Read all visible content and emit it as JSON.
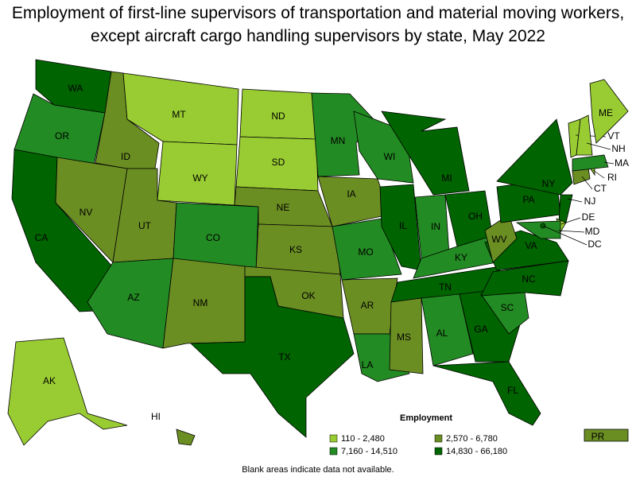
{
  "title": "Employment of first-line supervisors of transportation and material moving workers, except aircraft cargo handling supervisors by state, May 2022",
  "legend": {
    "title": "Employment",
    "items": [
      {
        "label": "110 - 2,480",
        "color": "#99cc33"
      },
      {
        "label": "2,570 - 6,780",
        "color": "#6b8e23"
      },
      {
        "label": "7,160 - 14,510",
        "color": "#238b23"
      },
      {
        "label": "14,830 - 66,180",
        "color": "#006400"
      }
    ]
  },
  "states": [
    {
      "label": "WA",
      "class": 3
    },
    {
      "label": "OR",
      "class": 2
    },
    {
      "label": "CA",
      "class": 3
    },
    {
      "label": "NV",
      "class": 1
    },
    {
      "label": "ID",
      "class": 1
    },
    {
      "label": "MT",
      "class": 0
    },
    {
      "label": "WY",
      "class": 0
    },
    {
      "label": "UT",
      "class": 1
    },
    {
      "label": "CO",
      "class": 2
    },
    {
      "label": "AZ",
      "class": 2
    },
    {
      "label": "NM",
      "class": 1
    },
    {
      "label": "ND",
      "class": 0
    },
    {
      "label": "SD",
      "class": 0
    },
    {
      "label": "NE",
      "class": 1
    },
    {
      "label": "KS",
      "class": 1
    },
    {
      "label": "OK",
      "class": 1
    },
    {
      "label": "TX",
      "class": 3
    },
    {
      "label": "MN",
      "class": 2
    },
    {
      "label": "IA",
      "class": 1
    },
    {
      "label": "MO",
      "class": 2
    },
    {
      "label": "AR",
      "class": 1
    },
    {
      "label": "LA",
      "class": 2
    },
    {
      "label": "WI",
      "class": 2
    },
    {
      "label": "IL",
      "class": 3
    },
    {
      "label": "MI",
      "class": 3
    },
    {
      "label": "IN",
      "class": 2
    },
    {
      "label": "OH",
      "class": 3
    },
    {
      "label": "KY",
      "class": 2
    },
    {
      "label": "TN",
      "class": 3
    },
    {
      "label": "MS",
      "class": 1
    },
    {
      "label": "AL",
      "class": 2
    },
    {
      "label": "GA",
      "class": 3
    },
    {
      "label": "FL",
      "class": 3
    },
    {
      "label": "SC",
      "class": 2
    },
    {
      "label": "NC",
      "class": 3
    },
    {
      "label": "VA",
      "class": 3
    },
    {
      "label": "WV",
      "class": 1
    },
    {
      "label": "PA",
      "class": 3
    },
    {
      "label": "NY",
      "class": 3
    },
    {
      "label": "NJ",
      "class": 3
    },
    {
      "label": "DE",
      "class": 0
    },
    {
      "label": "MD",
      "class": 2
    },
    {
      "label": "DC",
      "class": 3
    },
    {
      "label": "CT",
      "class": 1
    },
    {
      "label": "RI",
      "class": 0
    },
    {
      "label": "MA",
      "class": 2
    },
    {
      "label": "VT",
      "class": 0
    },
    {
      "label": "NH",
      "class": 0
    },
    {
      "label": "ME",
      "class": 0
    },
    {
      "label": "AK",
      "class": 0
    },
    {
      "label": "HI",
      "class": 1
    },
    {
      "label": "PR",
      "class": 1
    }
  ],
  "footnote": "Blank areas indicate data not available."
}
